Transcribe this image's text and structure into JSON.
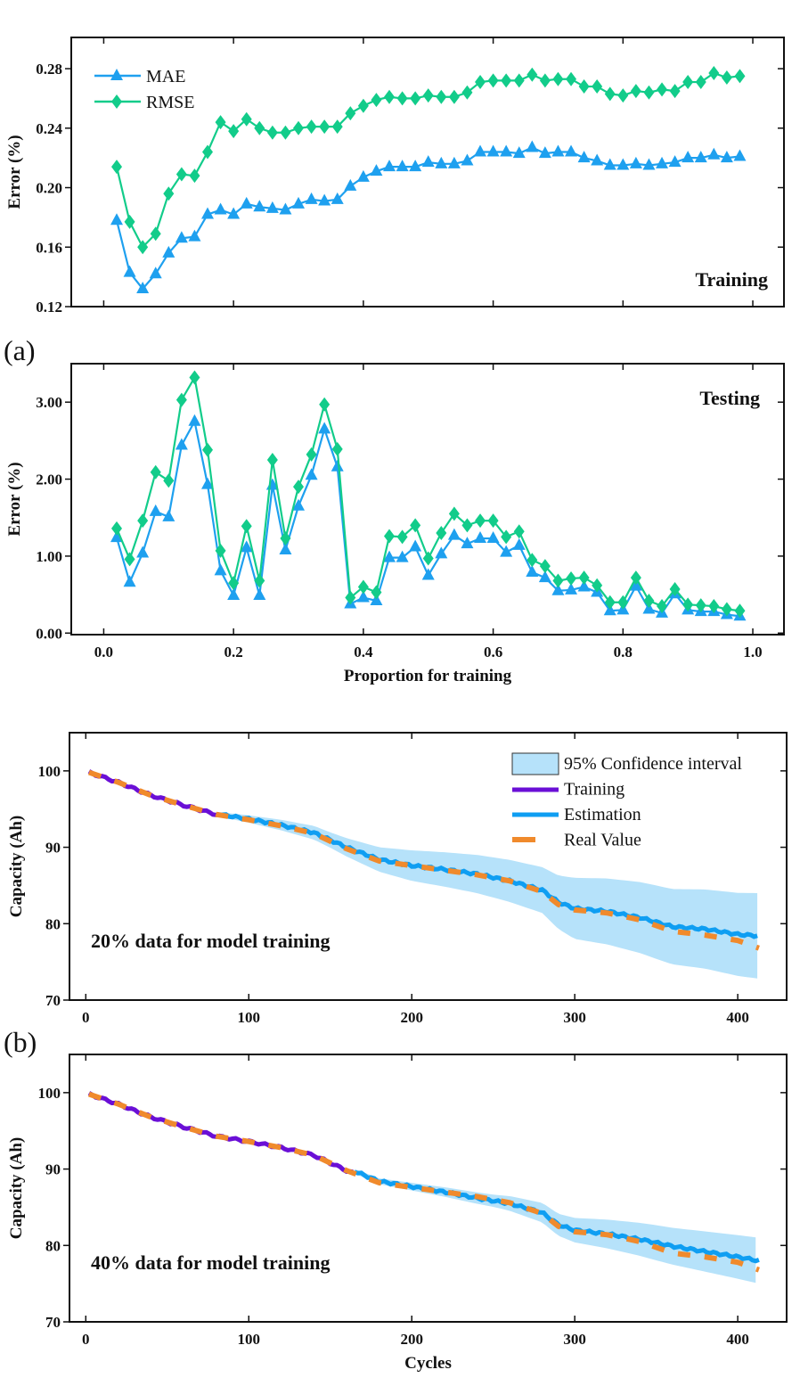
{
  "panel_labels": {
    "a": "(a)",
    "b": "(b)"
  },
  "colors": {
    "mae": "#1ea0ef",
    "rmse": "#12cc8a",
    "training": "#6a0fd6",
    "estimation": "#0f9ef2",
    "real": "#f08a2c",
    "ci": "#b6e2fa"
  },
  "chart_data": [
    {
      "type": "line",
      "title": "",
      "annotation": "Training",
      "xlabel": "",
      "ylabel": "Error (%)",
      "xlim": [
        -0.05,
        1.048
      ],
      "ylim": [
        0.12,
        0.301
      ],
      "xticks": [
        0.0,
        0.2,
        0.4,
        0.6,
        0.8,
        1.0
      ],
      "yticks": [
        0.12,
        0.16,
        0.2,
        0.24,
        0.28
      ],
      "ytick_labels": [
        "0.12",
        "0.16",
        "0.20",
        "0.24",
        "0.28"
      ],
      "legend": "top-left",
      "x": [
        0.02,
        0.04,
        0.06,
        0.08,
        0.1,
        0.12,
        0.14,
        0.16,
        0.18,
        0.2,
        0.22,
        0.24,
        0.26,
        0.28,
        0.3,
        0.32,
        0.34,
        0.36,
        0.38,
        0.4,
        0.42,
        0.44,
        0.46,
        0.48,
        0.5,
        0.52,
        0.54,
        0.56,
        0.58,
        0.6,
        0.62,
        0.64,
        0.66,
        0.68,
        0.7,
        0.72,
        0.74,
        0.76,
        0.78,
        0.8,
        0.82,
        0.84,
        0.86,
        0.88,
        0.9,
        0.92,
        0.94,
        0.96,
        0.98
      ],
      "series": [
        {
          "name": "MAE",
          "marker": "triangle",
          "values": [
            0.178,
            0.143,
            0.132,
            0.142,
            0.156,
            0.166,
            0.167,
            0.182,
            0.185,
            0.182,
            0.189,
            0.187,
            0.186,
            0.185,
            0.189,
            0.192,
            0.191,
            0.192,
            0.201,
            0.207,
            0.211,
            0.214,
            0.214,
            0.214,
            0.217,
            0.216,
            0.216,
            0.218,
            0.224,
            0.224,
            0.224,
            0.223,
            0.227,
            0.223,
            0.224,
            0.224,
            0.22,
            0.218,
            0.215,
            0.215,
            0.216,
            0.215,
            0.216,
            0.217,
            0.22,
            0.22,
            0.222,
            0.22,
            0.221
          ]
        },
        {
          "name": "RMSE",
          "marker": "diamond",
          "values": [
            0.214,
            0.177,
            0.16,
            0.169,
            0.196,
            0.209,
            0.208,
            0.224,
            0.244,
            0.238,
            0.246,
            0.24,
            0.237,
            0.237,
            0.24,
            0.241,
            0.241,
            0.241,
            0.25,
            0.255,
            0.259,
            0.261,
            0.26,
            0.26,
            0.262,
            0.261,
            0.261,
            0.264,
            0.271,
            0.272,
            0.272,
            0.272,
            0.276,
            0.272,
            0.273,
            0.273,
            0.268,
            0.268,
            0.263,
            0.262,
            0.265,
            0.264,
            0.266,
            0.265,
            0.271,
            0.271,
            0.277,
            0.274,
            0.275
          ]
        }
      ]
    },
    {
      "type": "line",
      "annotation": "Testing",
      "xlabel": "Proportion for training",
      "ylabel": "Error (%)",
      "xlim": [
        -0.05,
        1.048
      ],
      "ylim": [
        -0.02,
        3.5
      ],
      "xticks": [
        0.0,
        0.2,
        0.4,
        0.6,
        0.8,
        1.0
      ],
      "xtick_labels": [
        "0.0",
        "0.2",
        "0.4",
        "0.6",
        "0.8",
        "1.0"
      ],
      "yticks": [
        0,
        1,
        2,
        3
      ],
      "ytick_labels": [
        "0.00",
        "1.00",
        "2.00",
        "3.00"
      ],
      "x": [
        0.02,
        0.04,
        0.06,
        0.08,
        0.1,
        0.12,
        0.14,
        0.16,
        0.18,
        0.2,
        0.22,
        0.24,
        0.26,
        0.28,
        0.3,
        0.32,
        0.34,
        0.36,
        0.38,
        0.4,
        0.42,
        0.44,
        0.46,
        0.48,
        0.5,
        0.52,
        0.54,
        0.56,
        0.58,
        0.6,
        0.62,
        0.64,
        0.66,
        0.68,
        0.7,
        0.72,
        0.74,
        0.76,
        0.78,
        0.8,
        0.82,
        0.84,
        0.86,
        0.88,
        0.9,
        0.92,
        0.94,
        0.96,
        0.98
      ],
      "series": [
        {
          "name": "MAE",
          "marker": "triangle",
          "values": [
            1.24,
            0.66,
            1.04,
            1.58,
            1.51,
            2.44,
            2.75,
            1.93,
            0.81,
            0.49,
            1.11,
            0.49,
            1.92,
            1.08,
            1.65,
            2.05,
            2.65,
            2.16,
            0.38,
            0.46,
            0.42,
            0.98,
            0.98,
            1.12,
            0.75,
            1.03,
            1.27,
            1.16,
            1.23,
            1.23,
            1.05,
            1.14,
            0.79,
            0.72,
            0.55,
            0.56,
            0.6,
            0.53,
            0.29,
            0.3,
            0.61,
            0.31,
            0.26,
            0.51,
            0.3,
            0.28,
            0.28,
            0.24,
            0.22
          ]
        },
        {
          "name": "RMSE",
          "marker": "diamond",
          "values": [
            1.36,
            0.96,
            1.46,
            2.09,
            1.98,
            3.03,
            3.32,
            2.38,
            1.07,
            0.65,
            1.39,
            0.68,
            2.25,
            1.23,
            1.9,
            2.32,
            2.97,
            2.39,
            0.46,
            0.6,
            0.53,
            1.26,
            1.25,
            1.4,
            0.97,
            1.3,
            1.55,
            1.4,
            1.46,
            1.46,
            1.25,
            1.32,
            0.95,
            0.87,
            0.68,
            0.71,
            0.72,
            0.62,
            0.4,
            0.4,
            0.72,
            0.42,
            0.35,
            0.57,
            0.37,
            0.36,
            0.35,
            0.31,
            0.29
          ]
        }
      ]
    },
    {
      "type": "line",
      "annotation": "20% data for model training",
      "xlabel": "",
      "ylabel": "Capacity (Ah)",
      "xlim": [
        -10,
        430
      ],
      "ylim": [
        70,
        105
      ],
      "xticks": [
        0,
        100,
        200,
        300,
        400
      ],
      "xtick_labels": [
        "0",
        "100",
        "200",
        "300",
        "400"
      ],
      "yticks": [
        70,
        80,
        90,
        100
      ],
      "ytick_labels": [
        "70",
        "80",
        "90",
        "100"
      ],
      "legend": "top-right",
      "legend_labels": [
        "95% Confidence interval",
        "Training",
        "Estimation",
        "Real Value"
      ],
      "real": {
        "x": [
          2,
          20,
          40,
          60,
          80,
          100,
          120,
          140,
          160,
          180,
          200,
          220,
          240,
          260,
          280,
          290,
          300,
          320,
          340,
          360,
          380,
          400,
          413
        ],
        "y": [
          99.8,
          98.5,
          96.8,
          95.5,
          94.3,
          93.6,
          92.8,
          91.8,
          89.8,
          88.2,
          87.6,
          87.0,
          86.4,
          85.6,
          84.2,
          82.5,
          81.8,
          81.4,
          80.5,
          79.0,
          78.5,
          77.8,
          76.8
        ]
      },
      "training_end": 82,
      "estimation": {
        "x": [
          82,
          100,
          120,
          140,
          160,
          180,
          200,
          220,
          240,
          260,
          280,
          290,
          300,
          320,
          340,
          360,
          380,
          400,
          413
        ],
        "y": [
          94.3,
          93.7,
          92.9,
          91.9,
          90.0,
          88.4,
          87.6,
          87.1,
          86.5,
          85.6,
          84.4,
          82.8,
          82.0,
          81.6,
          80.8,
          79.6,
          79.3,
          78.6,
          78.4
        ]
      },
      "ci_halfwidth": {
        "x": [
          82,
          150,
          200,
          280,
          300,
          350,
          413
        ],
        "y": [
          0.3,
          1.0,
          2.0,
          3.0,
          4.0,
          4.8,
          5.6
        ]
      }
    },
    {
      "type": "line",
      "annotation": "40% data for model training",
      "xlabel": "Cycles",
      "ylabel": "Capacity (Ah)",
      "xlim": [
        -10,
        430
      ],
      "ylim": [
        70,
        105
      ],
      "xticks": [
        0,
        100,
        200,
        300,
        400
      ],
      "xtick_labels": [
        "0",
        "100",
        "200",
        "300",
        "400"
      ],
      "yticks": [
        70,
        80,
        90,
        100
      ],
      "ytick_labels": [
        "70",
        "80",
        "90",
        "100"
      ],
      "real": {
        "x": [
          2,
          20,
          40,
          60,
          80,
          100,
          120,
          140,
          160,
          180,
          200,
          220,
          240,
          260,
          280,
          290,
          300,
          320,
          340,
          360,
          380,
          400,
          413
        ],
        "y": [
          99.8,
          98.5,
          96.8,
          95.5,
          94.3,
          93.6,
          92.8,
          91.8,
          89.8,
          88.2,
          87.6,
          87.0,
          86.4,
          85.6,
          84.2,
          82.5,
          81.8,
          81.4,
          80.5,
          79.0,
          78.5,
          77.8,
          76.8
        ]
      },
      "training_end": 165,
      "estimation": {
        "x": [
          165,
          180,
          200,
          220,
          240,
          260,
          280,
          290,
          300,
          320,
          340,
          360,
          380,
          400,
          413
        ],
        "y": [
          89.7,
          88.4,
          87.7,
          87.0,
          86.2,
          85.5,
          84.3,
          82.7,
          82.0,
          81.5,
          80.8,
          79.9,
          79.2,
          78.5,
          78.0
        ]
      },
      "ci_halfwidth": {
        "x": [
          165,
          250,
          300,
          350,
          413
        ],
        "y": [
          0.3,
          0.8,
          1.6,
          2.3,
          3.0
        ]
      }
    }
  ]
}
